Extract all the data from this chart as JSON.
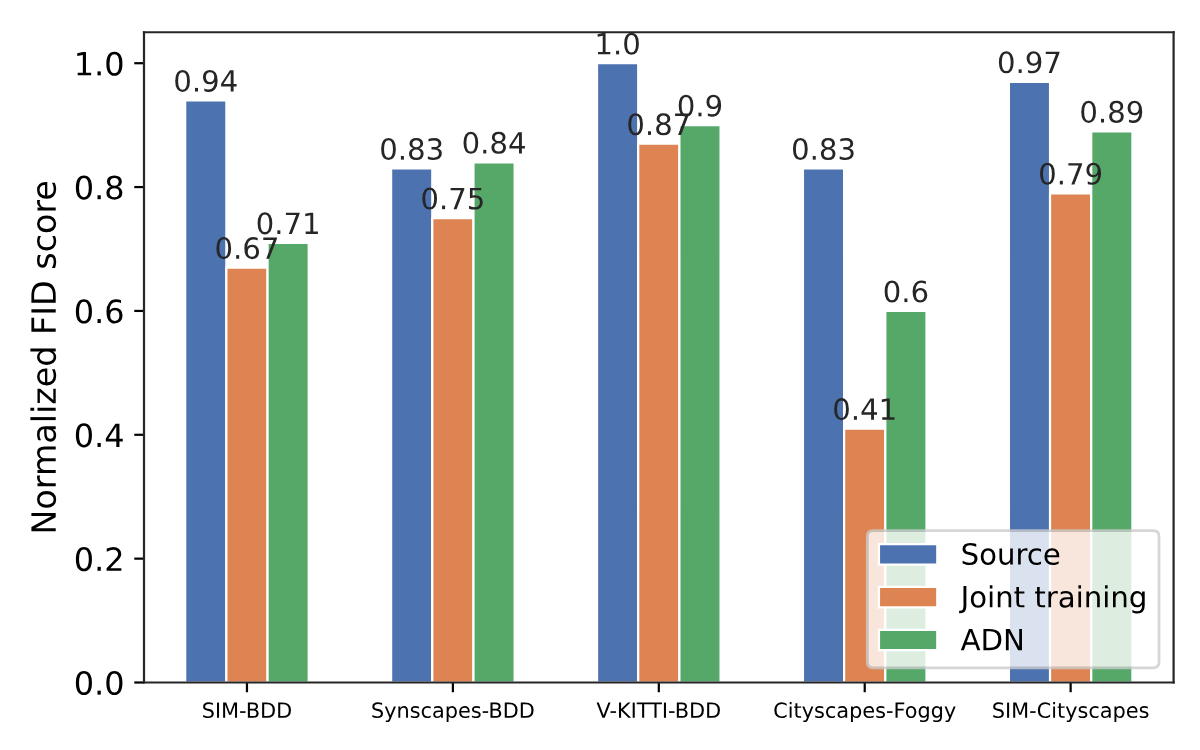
{
  "chart_data": {
    "type": "bar",
    "ylabel": "Normalized FID score",
    "categories": [
      "SIM-BDD",
      "Synscapes-BDD",
      "V-KITTI-BDD",
      "Cityscapes-Foggy",
      "SIM-Cityscapes"
    ],
    "series": [
      {
        "name": "Source",
        "color": "#4c72b0",
        "values": [
          0.94,
          0.83,
          1.0,
          0.83,
          0.97
        ],
        "value_labels": [
          "0.94",
          "0.83",
          "1.0",
          "0.83",
          "0.97"
        ]
      },
      {
        "name": "Joint training",
        "color": "#dd8452",
        "values": [
          0.67,
          0.75,
          0.87,
          0.41,
          0.79
        ],
        "value_labels": [
          "0.67",
          "0.75",
          "0.87",
          "0.41",
          "0.79"
        ]
      },
      {
        "name": "ADN",
        "color": "#55a868",
        "values": [
          0.71,
          0.84,
          0.9,
          0.6,
          0.89
        ],
        "value_labels": [
          "0.71",
          "0.84",
          "0.9",
          "0.6",
          "0.89"
        ]
      }
    ],
    "ylim": [
      0,
      1.05
    ],
    "yticks": [
      {
        "value": 0,
        "label": "0.0"
      },
      {
        "value": 0.2,
        "label": "0.2"
      },
      {
        "value": 0.4,
        "label": "0.4"
      },
      {
        "value": 0.6,
        "label": "0.6"
      },
      {
        "value": 0.8,
        "label": "0.8"
      },
      {
        "value": 1.0,
        "label": "1.0"
      }
    ],
    "grid": false,
    "legend": "bottom right"
  }
}
